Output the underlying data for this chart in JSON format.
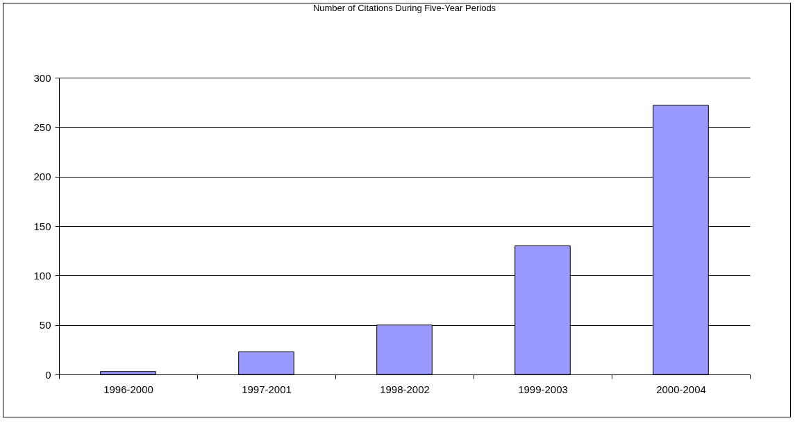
{
  "chart_data": {
    "type": "bar",
    "title": "Number of Citations During Five-Year Periods",
    "categories": [
      "1996-2000",
      "1997-2001",
      "1998-2002",
      "1999-2003",
      "2000-2004"
    ],
    "values": [
      3,
      23,
      50,
      130,
      272
    ],
    "color": "#9999ff",
    "ylim": [
      0,
      300
    ],
    "yticks": [
      0,
      50,
      100,
      150,
      200,
      250,
      300
    ],
    "grid": "y"
  }
}
